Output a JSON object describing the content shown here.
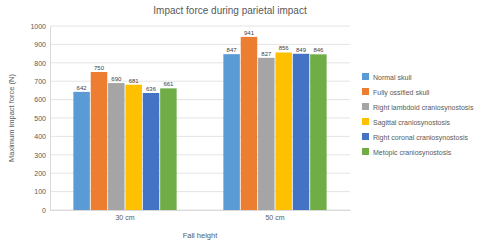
{
  "chart_data": {
    "type": "bar",
    "title": "Impact force during parietal impact",
    "x_label": "Fall height",
    "y_label": "Maximum impact force (N)",
    "categories": [
      "30 cm",
      "50 cm"
    ],
    "series": [
      {
        "name": "Normal skull",
        "color": "#5b9bd5",
        "values": [
          642,
          847
        ]
      },
      {
        "name": "Fully ossified skull",
        "color": "#ed7d31",
        "values": [
          750,
          941
        ]
      },
      {
        "name": "Right lambdoid craniosynostosis",
        "color": "#a5a5a5",
        "values": [
          690,
          827
        ]
      },
      {
        "name": "Sagittal craniosynostosis",
        "color": "#ffc000",
        "values": [
          681,
          856
        ]
      },
      {
        "name": "Right coronal craniosynostosis",
        "color": "#4472c4",
        "values": [
          636,
          849
        ]
      },
      {
        "name": "Metopic craniosynostosis",
        "color": "#70ad47",
        "values": [
          661,
          846
        ]
      }
    ],
    "ylim": [
      0,
      1000
    ],
    "yticks": [
      0,
      100,
      200,
      300,
      400,
      500,
      600,
      700,
      800,
      900,
      1000
    ],
    "grid": true,
    "data_labels": true,
    "legend": "right"
  }
}
